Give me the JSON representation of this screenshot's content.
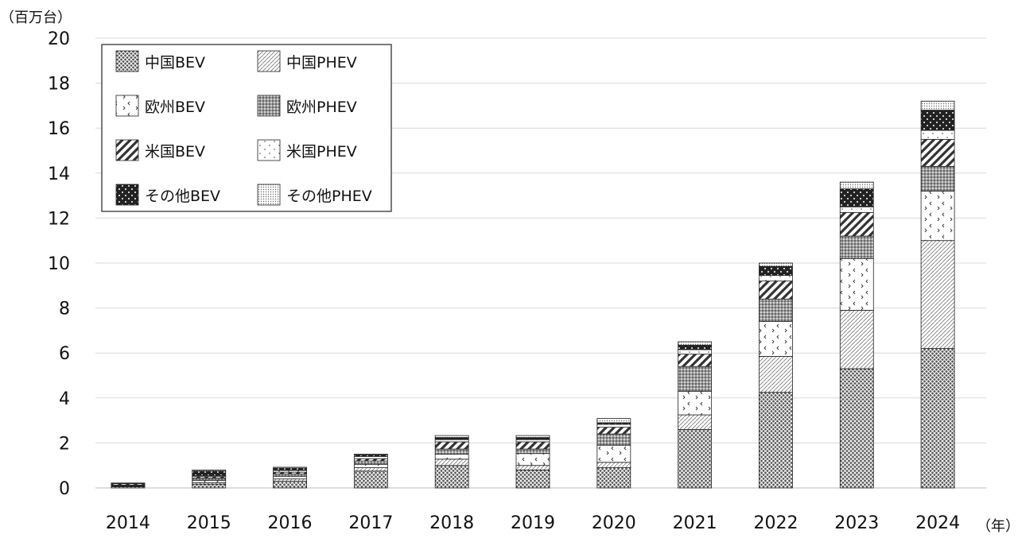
{
  "chart_data": {
    "type": "bar",
    "stacked": true,
    "ylabel": "（百万台）",
    "xlabel": "（年）",
    "ylim": [
      0,
      20
    ],
    "yticks": [
      0,
      2,
      4,
      6,
      8,
      10,
      12,
      14,
      16,
      18,
      20
    ],
    "grid": true,
    "legend_position": "top-left",
    "categories": [
      "2014",
      "2015",
      "2016",
      "2017",
      "2018",
      "2019",
      "2020",
      "2021",
      "2022",
      "2023",
      "2024"
    ],
    "series": [
      {
        "name": "中国BEV",
        "pattern": "crosshatch",
        "values": [
          0.05,
          0.17,
          0.3,
          0.75,
          1.0,
          0.8,
          0.9,
          2.6,
          4.25,
          5.3,
          6.2
        ]
      },
      {
        "name": "中国PHEV",
        "pattern": "fine-diagonal",
        "values": [
          0.02,
          0.07,
          0.1,
          0.15,
          0.28,
          0.2,
          0.24,
          0.65,
          1.6,
          2.6,
          4.8
        ]
      },
      {
        "name": "欧州BEV",
        "pattern": "scattered-marks",
        "values": [
          0.03,
          0.1,
          0.12,
          0.15,
          0.22,
          0.53,
          0.76,
          1.05,
          1.55,
          2.3,
          2.2
        ]
      },
      {
        "name": "欧州PHEV",
        "pattern": "dense-dots",
        "values": [
          0.03,
          0.1,
          0.1,
          0.15,
          0.23,
          0.2,
          0.5,
          1.1,
          1.0,
          1.0,
          1.1
        ]
      },
      {
        "name": "米国BEV",
        "pattern": "thick-diagonal",
        "values": [
          0.06,
          0.07,
          0.08,
          0.1,
          0.32,
          0.32,
          0.3,
          0.55,
          0.8,
          1.05,
          1.2
        ]
      },
      {
        "name": "米国PHEV",
        "pattern": "sparse-dots",
        "values": [
          0.02,
          0.04,
          0.08,
          0.1,
          0.1,
          0.1,
          0.13,
          0.2,
          0.25,
          0.25,
          0.4
        ]
      },
      {
        "name": "その他BEV",
        "pattern": "dark-dots",
        "values": [
          0.01,
          0.2,
          0.1,
          0.07,
          0.09,
          0.09,
          0.07,
          0.2,
          0.4,
          0.8,
          0.9
        ]
      },
      {
        "name": "その他PHEV",
        "pattern": "fine-dots",
        "values": [
          0.0,
          0.05,
          0.04,
          0.03,
          0.09,
          0.09,
          0.19,
          0.15,
          0.15,
          0.3,
          0.4
        ]
      }
    ]
  }
}
